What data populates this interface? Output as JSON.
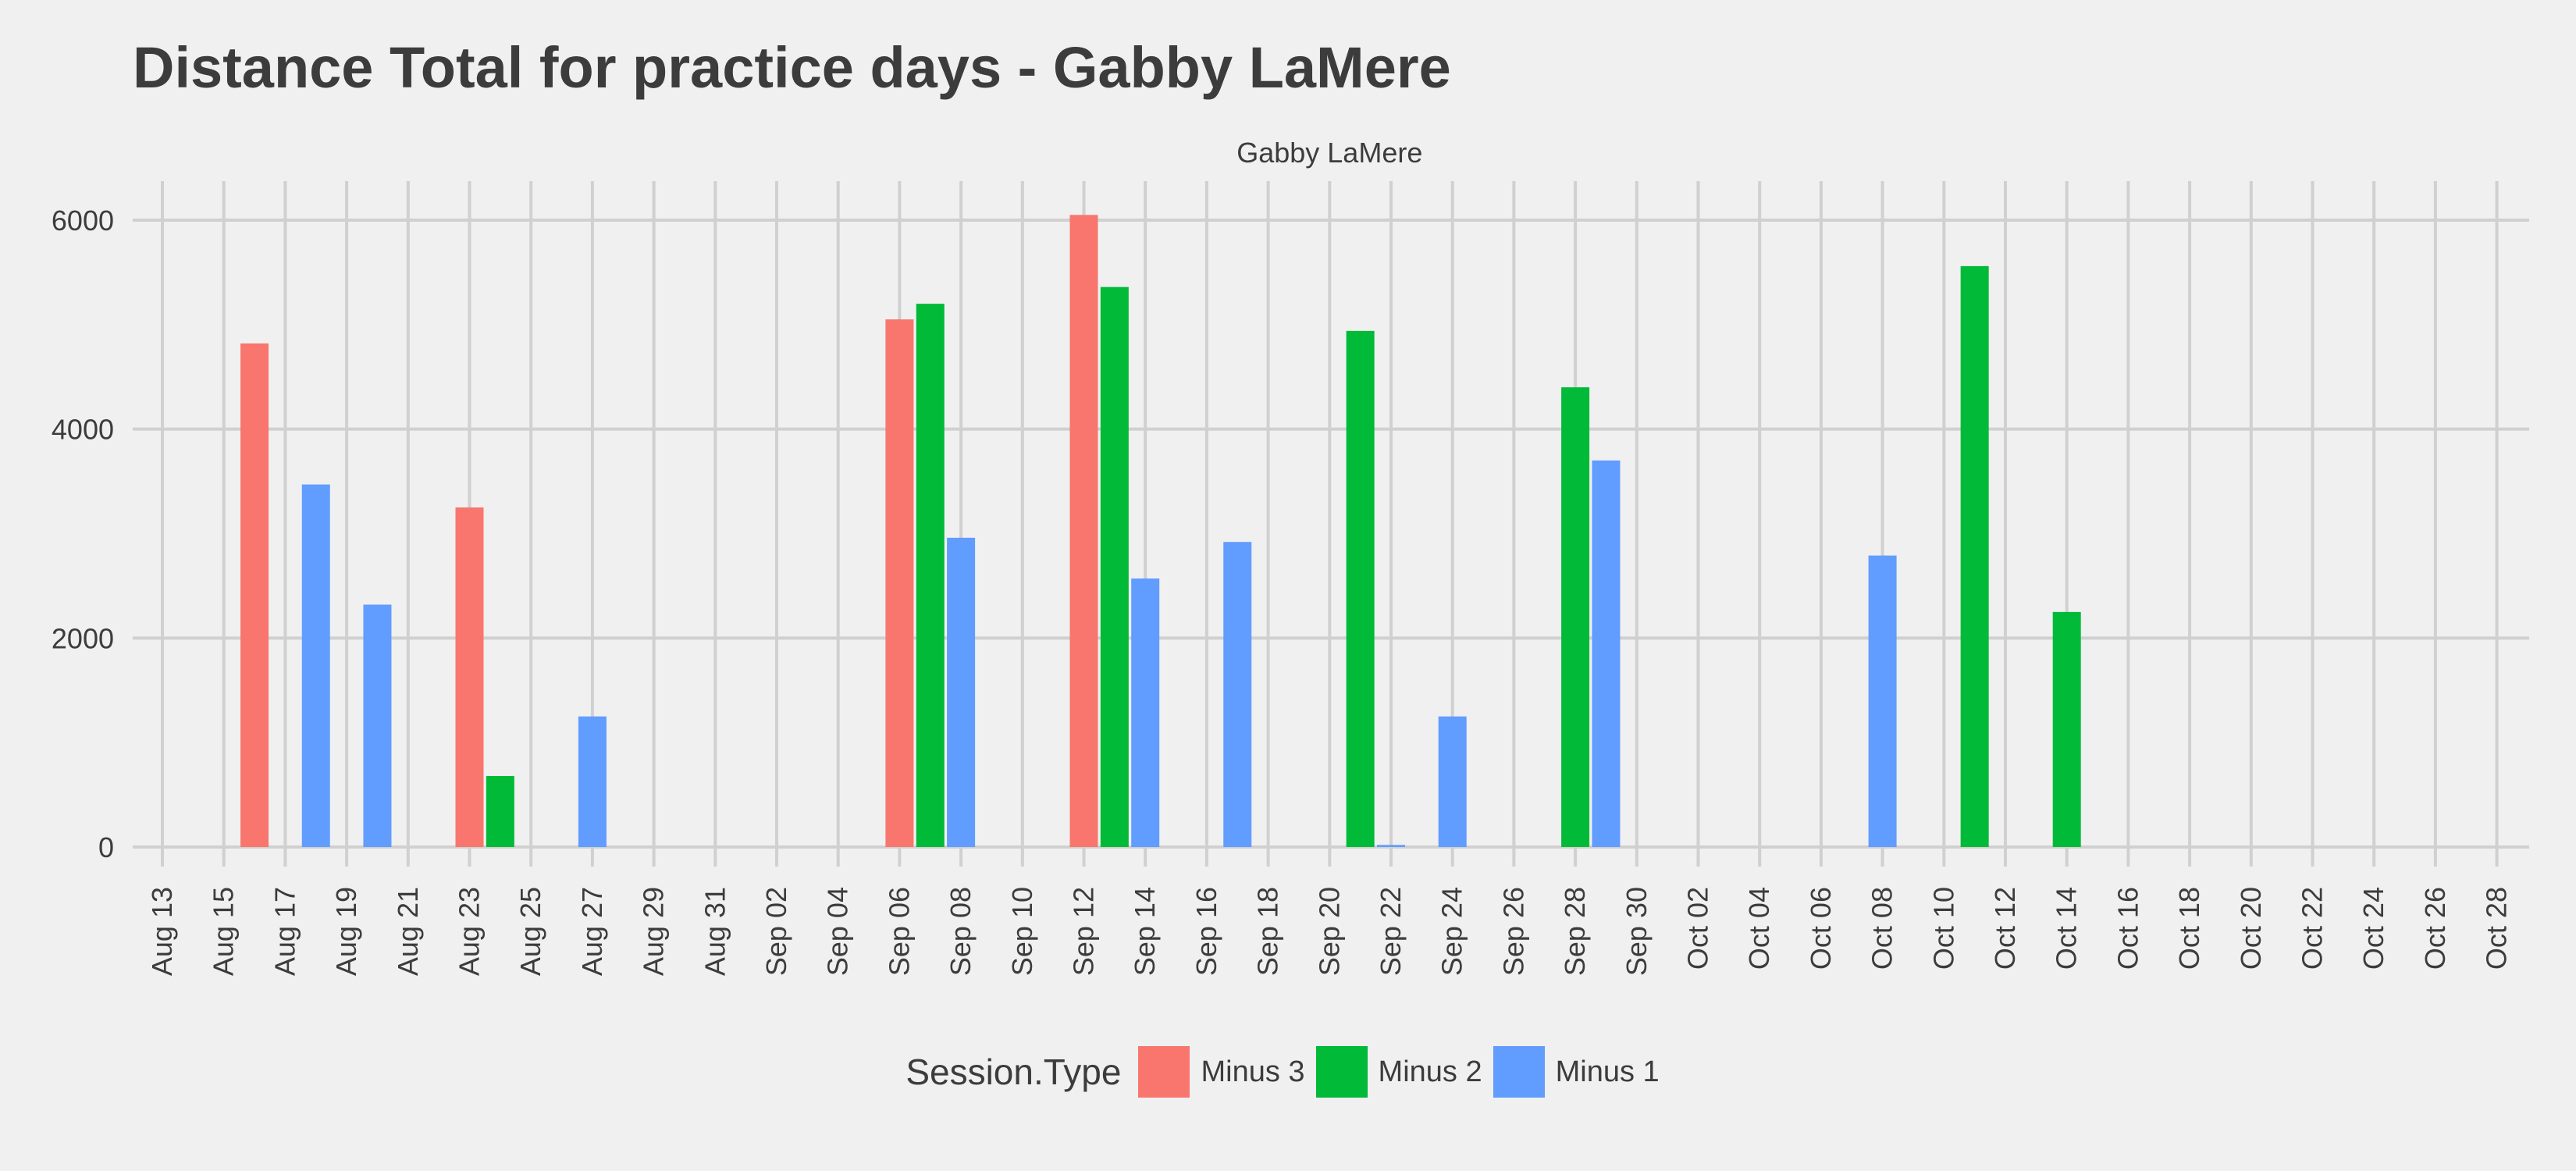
{
  "chart_data": {
    "type": "bar",
    "title": "Distance Total for practice days -  Gabby LaMere",
    "facet_label": "Gabby LaMere",
    "xlabel": "",
    "ylabel": "",
    "ylim": [
      0,
      6000
    ],
    "y_ticks": [
      0,
      2000,
      4000,
      6000
    ],
    "x_start": "2017-08-13",
    "x_end": "2017-10-28",
    "x_tick_labels": [
      "Aug 13",
      "Aug 15",
      "Aug 17",
      "Aug 19",
      "Aug 21",
      "Aug 23",
      "Aug 25",
      "Aug 27",
      "Aug 29",
      "Aug 31",
      "Sep 02",
      "Sep 04",
      "Sep 06",
      "Sep 08",
      "Sep 10",
      "Sep 12",
      "Sep 14",
      "Sep 16",
      "Sep 18",
      "Sep 20",
      "Sep 22",
      "Sep 24",
      "Sep 26",
      "Sep 28",
      "Sep 30",
      "Oct 02",
      "Oct 04",
      "Oct 06",
      "Oct 08",
      "Oct 10",
      "Oct 12",
      "Oct 14",
      "Oct 16",
      "Oct 18",
      "Oct 20",
      "Oct 22",
      "Oct 24",
      "Oct 26",
      "Oct 28"
    ],
    "grid": true,
    "legend": {
      "title": "Session.Type",
      "position": "bottom"
    },
    "series": [
      {
        "name": "Minus 3",
        "color": "#f8766d",
        "points": [
          {
            "x": "2017-08-16",
            "y": 4820
          },
          {
            "x": "2017-08-23",
            "y": 3250
          },
          {
            "x": "2017-09-06",
            "y": 5050
          },
          {
            "x": "2017-09-12",
            "y": 6050
          }
        ]
      },
      {
        "name": "Minus 2",
        "color": "#00ba38",
        "points": [
          {
            "x": "2017-08-24",
            "y": 680
          },
          {
            "x": "2017-09-07",
            "y": 5200
          },
          {
            "x": "2017-09-13",
            "y": 5360
          },
          {
            "x": "2017-09-21",
            "y": 4940
          },
          {
            "x": "2017-09-28",
            "y": 4400
          },
          {
            "x": "2017-10-11",
            "y": 5560
          },
          {
            "x": "2017-10-14",
            "y": 2250
          }
        ]
      },
      {
        "name": "Minus 1",
        "color": "#619cff",
        "points": [
          {
            "x": "2017-08-18",
            "y": 3470
          },
          {
            "x": "2017-08-20",
            "y": 2320
          },
          {
            "x": "2017-08-27",
            "y": 1250
          },
          {
            "x": "2017-09-08",
            "y": 2960
          },
          {
            "x": "2017-09-14",
            "y": 2570
          },
          {
            "x": "2017-09-17",
            "y": 2920
          },
          {
            "x": "2017-09-22",
            "y": 20
          },
          {
            "x": "2017-09-24",
            "y": 1250
          },
          {
            "x": "2017-09-29",
            "y": 3700
          },
          {
            "x": "2017-10-08",
            "y": 2790
          }
        ]
      }
    ]
  }
}
